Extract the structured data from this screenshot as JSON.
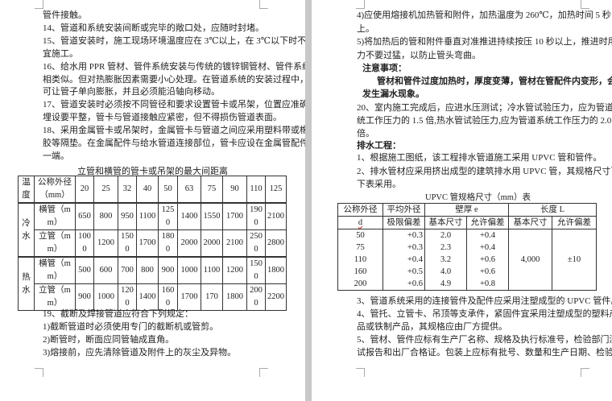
{
  "left_page": {
    "lines": [
      "管件接触。",
      "14、管道和系统安装间断或完毕的敞口处，应随时封堵。",
      "15、管道安装时，施工现场环境温度应在 3℃以上，在 3℃以下时不",
      "宜施工。",
      "16、给水用 PPR 管材、管件系统安装与传统的镀锌钢管材、管件系统",
      "相类似。但对热膨胀因素需要小心处理。在管道系统的安装过程中，",
      "可让管子单向膨胀，并且必须能沿轴向移动。",
      "17、管道安装时必须按不同管径和要求设置管卡或吊架，位置应准确，",
      "埋设要平整，管卡与管道接触应紧密，但不得损伤管道表面。",
      "18、采用金属管卡或吊架时，金属管卡与管道之间应采用塑料带或橡",
      "胶等隔垫。在金属配件与给水管道连接部位，管卡应设在金属管配件",
      "一端。"
    ],
    "table1": {
      "caption": "立管和横管的管卡或吊架的最大间距离",
      "header": {
        "temp": "温度",
        "dn": "公称外径（mm）",
        "sizes": [
          "20",
          "25",
          "32",
          "40",
          "50",
          "63",
          "75",
          "90",
          "110",
          "125"
        ]
      },
      "groups": [
        {
          "label": "冷水",
          "rows": [
            {
              "label": "横管（mm）",
              "values": [
                "650",
                "800",
                "950",
                "1100",
                "1250",
                "1400",
                "1550",
                "1700",
                "1900",
                "2100"
              ]
            },
            {
              "label": "立管（mm）",
              "values": [
                "1000",
                "1200",
                "1500",
                "1700",
                "1800",
                "2000",
                "2000",
                "2100",
                "2500",
                "2800"
              ]
            }
          ]
        },
        {
          "label": "热水",
          "rows": [
            {
              "label": "横管（mm）",
              "values": [
                "500",
                "600",
                "700",
                "800",
                "900",
                "1000",
                "1100",
                "1200",
                "1500",
                "1800"
              ]
            },
            {
              "label": "立管（mm）",
              "values": [
                "900",
                "1000",
                "1200",
                "1400",
                "1600",
                "1700",
                "170",
                "1800",
                "2000",
                "2200"
              ]
            }
          ]
        }
      ]
    },
    "after": [
      "19、截断及焊接管道应符合下列规定：",
      "1)截断管道时必须使用专门的截断机或管剪。",
      "2)断管时，断面应同管轴成直角。",
      "3)熔接前，应先清除管道及附件上的灰尘及异物。"
    ]
  },
  "right_page": {
    "lines": [
      "4)应使用熔接机加热管和附件，加热温度为 260℃，加热时间 5 秒以",
      "上。",
      "5)将加热后的管和附件垂直对准推进持续按压 10 秒以上，推进时用",
      "力不要过猛，以防止管头弯曲。"
    ],
    "notice_title": "注意事项：",
    "notice_lines": [
      "管材和管件过度加热时，厚度变薄，管材在管配件内变形，会",
      "发生漏水现象。"
    ],
    "lines2": [
      "20、室内施工完成后，应进水压测试；冷水管试验压力，应为管道系",
      "统工作压力的 1.5 倍,热水管试验压力,应为管道系统工作压力的 2.0",
      "倍。"
    ],
    "drain_title": "排水工程：",
    "lines3": [
      "1、根据施工图纸，该工程排水管道施工采用 UPVC 管和管件。",
      "2、排水管材应采用挤出成型的建筑排水用 UPVC 管，其规格尺寸可按",
      "下表采用。"
    ],
    "table2": {
      "caption": "UPVC 管规格尺寸（mm）表",
      "h_dn": "公称外径",
      "h_dn2": "d",
      "h_mean": "平均外径",
      "h_mean2": "极限偏差",
      "h_wall": "壁厚 e",
      "h_len": "长度 L",
      "h_basic": "基本尺寸",
      "h_tol": "允许偏差",
      "rows": [
        [
          "50",
          "+0.3",
          "2.0",
          "+0.4"
        ],
        [
          "75",
          "+0.3",
          "2.3",
          "+0.4"
        ],
        [
          "110",
          "+0.4",
          "3.2",
          "+0.6"
        ],
        [
          "160",
          "+0.5",
          "4.0",
          "+0.6"
        ],
        [
          "200",
          "+0.6",
          "4.9",
          "+0.8"
        ]
      ],
      "length_basic": "4,000",
      "length_tol": "±10"
    },
    "lines4": [
      "3、管道系统采用的连接管件及配件应采用注塑成型的 UPVC 管件。",
      "4、管托、立管卡、吊顶等支承件，紧固件宜采用注塑成型的塑料产",
      "品或铁制产品，其规格应由厂方提供。",
      "5、管材、管件应标有生产厂名称、规格及执行标准号，检验部门测",
      "试报告和出厂合格证。包装上应标有批号、数量和生产日期、检验代"
    ]
  }
}
